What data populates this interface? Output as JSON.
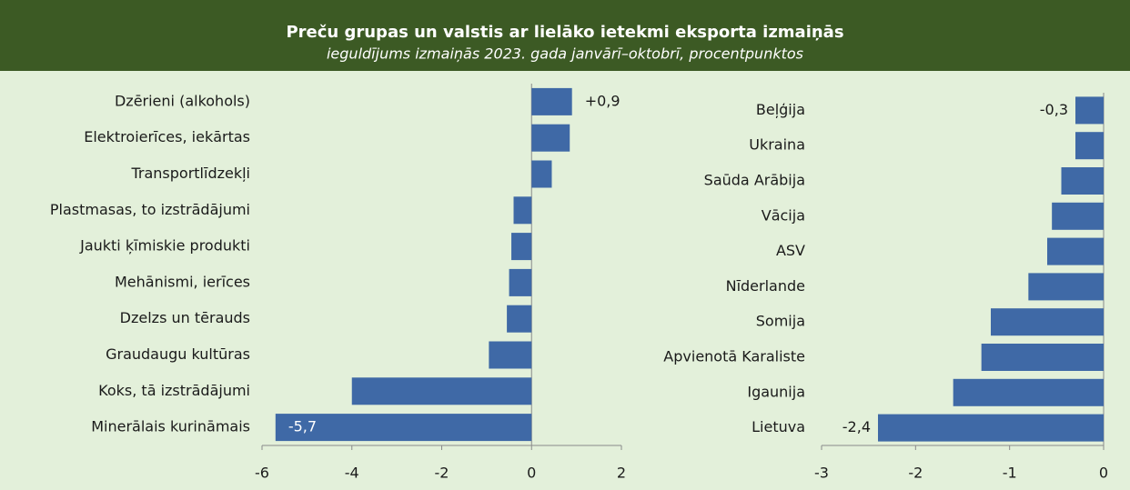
{
  "title": "Preču grupas un valstis ar lielāko ietekmi eksporta izmaiņās",
  "subtitle": "ieguldījums izmaiņās 2023. gada janvārī–oktobrī, procentpunktos",
  "chart_data": [
    {
      "type": "bar",
      "orientation": "horizontal",
      "color": "#3f69a6",
      "categories": [
        "Dzērieni (alkohols)",
        "Elektroierīces, iekārtas",
        "Transportlīdzekļi",
        "Plastmasas, to izstrādājumi",
        "Jaukti ķīmiskie produkti",
        "Mehānismi, ierīces",
        "Dzelzs un tērauds",
        "Graudaugu kultūras",
        "Koks, tā izstrādājumi",
        "Minerālais kurināmais"
      ],
      "values": [
        0.9,
        0.85,
        0.45,
        -0.4,
        -0.45,
        -0.5,
        -0.55,
        -0.95,
        -4.0,
        -5.7
      ],
      "value_labels": [
        "+0,9",
        null,
        null,
        null,
        null,
        null,
        null,
        null,
        null,
        "-5,7"
      ],
      "xlim": [
        -6,
        2
      ],
      "xticks": [
        -6,
        -4,
        -2,
        0,
        2
      ]
    },
    {
      "type": "bar",
      "orientation": "horizontal",
      "color": "#3f69a6",
      "categories": [
        "Beļģija",
        "Ukraina",
        "Saūda Arābija",
        "Vācija",
        "ASV",
        "Nīderlande",
        "Somija",
        "Apvienotā Karaliste",
        "Igaunija",
        "Lietuva"
      ],
      "values": [
        -0.3,
        -0.3,
        -0.45,
        -0.55,
        -0.6,
        -0.8,
        -1.2,
        -1.3,
        -1.6,
        -2.4
      ],
      "value_labels": [
        "-0,3",
        null,
        null,
        null,
        null,
        null,
        null,
        null,
        null,
        "-2,4"
      ],
      "xlim": [
        -3,
        0
      ],
      "xticks": [
        -3,
        -2,
        -1,
        0
      ]
    }
  ]
}
